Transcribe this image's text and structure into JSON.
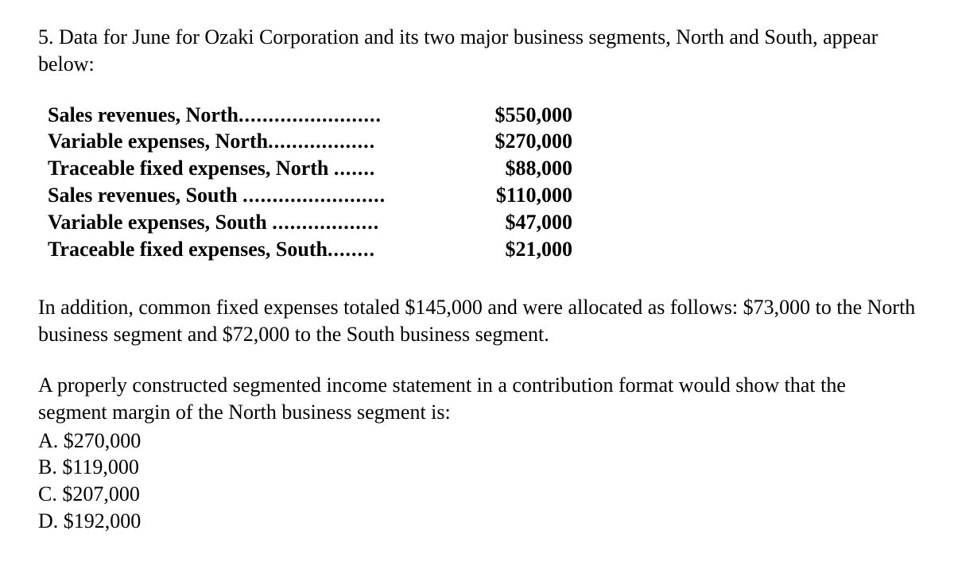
{
  "intro": "5. Data for June for Ozaki Corporation and its two major business segments, North and South, appear below:",
  "rows": [
    {
      "label": "Sales revenues, North",
      "dots": "........................",
      "value": "$550,000"
    },
    {
      "label": "Variable expenses, North",
      "dots": "..................",
      "value": "$270,000"
    },
    {
      "label": "Traceable fixed expenses, North",
      "dots": ".......",
      "value": "$88,000"
    },
    {
      "label": "Sales revenues, South",
      "dots": "........................",
      "value": "$110,000"
    },
    {
      "label": "Variable expenses, South",
      "dots": "..................",
      "value": "$47,000"
    },
    {
      "label": "Traceable fixed expenses, South",
      "dots": "........",
      "value": "$21,000"
    }
  ],
  "middle": "In addition, common fixed expenses totaled $145,000 and were allocated as follows: $73,000 to the North business segment and $72,000 to the South business segment.",
  "question": "A properly constructed segmented income statement in a contribution format would show that the segment margin of the North business segment is:",
  "options": {
    "a": "A. $270,000",
    "b": "B. $119,000",
    "c": "C. $207,000",
    "d": "D. $192,000"
  }
}
